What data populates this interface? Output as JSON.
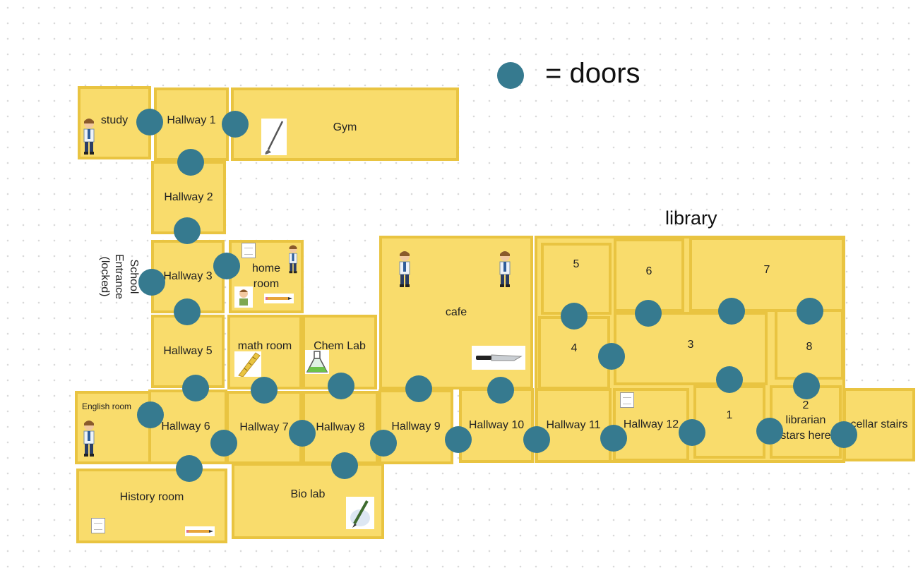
{
  "legend": {
    "label": "= doors",
    "door_color": "#367a8f"
  },
  "library_title": "library",
  "entrance_label": "School\nEntrance\n(locked)",
  "colors": {
    "room_fill": "#f9dc6c",
    "room_border": "#e9c441",
    "door": "#367a8f"
  },
  "rooms": {
    "study": "study",
    "hallway1": "Hallway 1",
    "gym": "Gym",
    "hallway2": "Hallway 2",
    "hallway3": "Hallway 3",
    "home_room": "home\nroom",
    "cafe": "cafe",
    "lib5": "5",
    "lib6": "6",
    "lib7": "7",
    "lib4": "4",
    "lib3": "3",
    "lib8": "8",
    "hallway5": "Hallway 5",
    "math_room": "math room",
    "chem_lab": "Chem Lab",
    "english_room": "English room",
    "hallway6": "Hallway 6",
    "hallway7": "Hallway 7",
    "hallway8": "Hallway 8",
    "hallway9": "Hallway 9",
    "hallway10": "Hallway 10",
    "hallway11": "Hallway 11",
    "hallway12": "Hallway 12",
    "lib1": "1",
    "lib2": "2\nlibrarian\nstars here",
    "cellar_stairs": "cellar stairs",
    "history_room": "History room",
    "bio_lab": "Bio lab"
  },
  "icons": {
    "person": "student-icon",
    "note": "note-icon",
    "ruler": "ruler-icon",
    "knife": "knife-icon",
    "golf_club": "golf-club-icon",
    "flask": "flask-icon",
    "pen": "pen-icon",
    "pencil": "pencil-icon"
  }
}
